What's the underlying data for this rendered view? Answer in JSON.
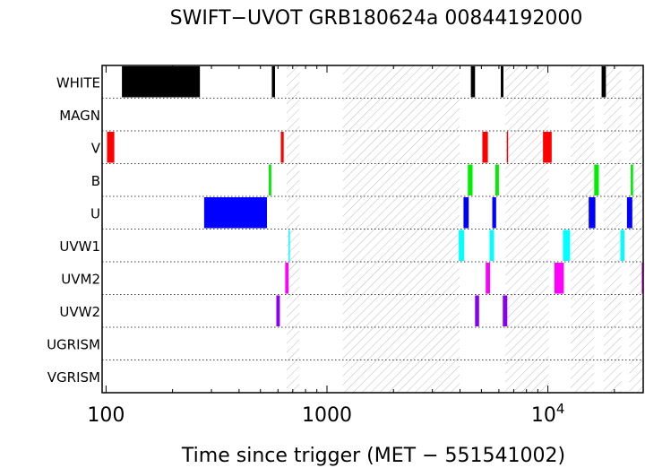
{
  "chart_data": {
    "type": "timeline",
    "title": "SWIFT−UVOT GRB180624a 00844192000",
    "xlabel": "Time since trigger (MET − 551541002)",
    "xscale": "log",
    "xlim": [
      96,
      27000
    ],
    "grid": false,
    "rows": [
      "WHITE",
      "MAGN",
      "V",
      "B",
      "U",
      "UVW1",
      "UVM2",
      "UVW2",
      "UGRISM",
      "VGRISM"
    ],
    "x_ticks": [
      {
        "value": 100,
        "label": "100"
      },
      {
        "value": 1000,
        "label": "1000"
      },
      {
        "value": 10000,
        "label": "10",
        "exponent": "4"
      }
    ],
    "gaps": [
      [
        657,
        750
      ],
      [
        1180,
        3980
      ],
      [
        6420,
        10100
      ],
      [
        12680,
        16200
      ],
      [
        17900,
        21500
      ],
      [
        23400,
        27000
      ]
    ],
    "colors": {
      "WHITE": "#000000",
      "V": "#ff0000",
      "B": "#00ee00",
      "U": "#0000ff",
      "UVW1": "#00ffff",
      "UVM2": "#ff00ff",
      "UVW2": "#8800ee"
    },
    "exposures": [
      {
        "filter": "WHITE",
        "start": 118,
        "end": 266
      },
      {
        "filter": "WHITE",
        "start": 563,
        "end": 582
      },
      {
        "filter": "WHITE",
        "start": 4480,
        "end": 4680
      },
      {
        "filter": "WHITE",
        "start": 6120,
        "end": 6290
      },
      {
        "filter": "WHITE",
        "start": 17500,
        "end": 18300
      },
      {
        "filter": "V",
        "start": 101,
        "end": 109
      },
      {
        "filter": "V",
        "start": 618,
        "end": 637
      },
      {
        "filter": "V",
        "start": 5050,
        "end": 5350
      },
      {
        "filter": "V",
        "start": 6510,
        "end": 6580
      },
      {
        "filter": "V",
        "start": 9500,
        "end": 10400
      },
      {
        "filter": "B",
        "start": 545,
        "end": 560
      },
      {
        "filter": "B",
        "start": 4340,
        "end": 4560
      },
      {
        "filter": "B",
        "start": 5780,
        "end": 6000
      },
      {
        "filter": "B",
        "start": 16200,
        "end": 17000
      },
      {
        "filter": "B",
        "start": 23700,
        "end": 24300
      },
      {
        "filter": "U",
        "start": 278,
        "end": 535
      },
      {
        "filter": "U",
        "start": 4150,
        "end": 4380
      },
      {
        "filter": "U",
        "start": 5600,
        "end": 5830
      },
      {
        "filter": "U",
        "start": 15300,
        "end": 16400
      },
      {
        "filter": "U",
        "start": 22800,
        "end": 24100
      },
      {
        "filter": "UVW1",
        "start": 670,
        "end": 675
      },
      {
        "filter": "UVW1",
        "start": 3950,
        "end": 4180
      },
      {
        "filter": "UVW1",
        "start": 5450,
        "end": 5700
      },
      {
        "filter": "UVW1",
        "start": 11700,
        "end": 12600
      },
      {
        "filter": "UVW1",
        "start": 21300,
        "end": 22200
      },
      {
        "filter": "UVM2",
        "start": 647,
        "end": 670
      },
      {
        "filter": "UVM2",
        "start": 5230,
        "end": 5470
      },
      {
        "filter": "UVM2",
        "start": 10700,
        "end": 11800
      },
      {
        "filter": "UVM2",
        "start": 26600,
        "end": 27000
      },
      {
        "filter": "UVW2",
        "start": 590,
        "end": 612
      },
      {
        "filter": "UVW2",
        "start": 4680,
        "end": 4880
      },
      {
        "filter": "UVW2",
        "start": 6250,
        "end": 6550
      }
    ]
  }
}
